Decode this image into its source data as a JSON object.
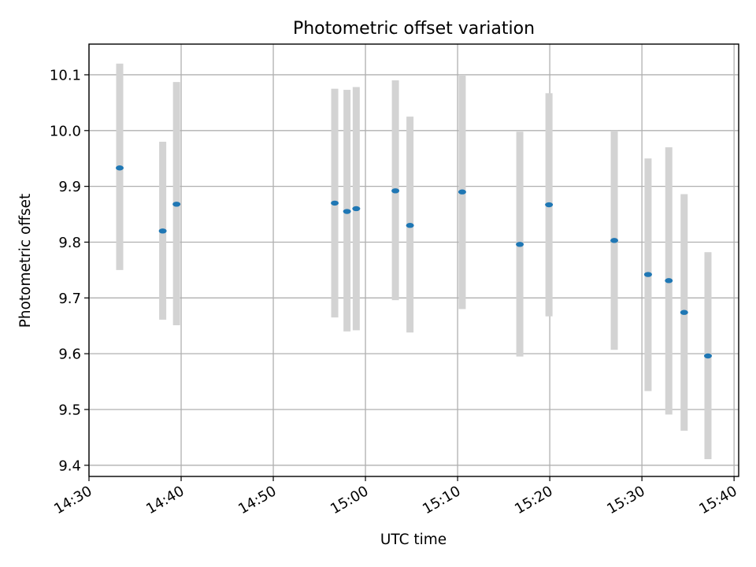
{
  "chart_data": {
    "type": "scatter",
    "title": "Photometric offset variation",
    "xlabel": "UTC time",
    "ylabel": "Photometric offset",
    "x_axis_type": "time",
    "xlim": [
      "14:30",
      "15:40:30"
    ],
    "ylim": [
      9.38,
      10.155
    ],
    "grid": true,
    "x_ticks": [
      "14:30",
      "14:40",
      "14:50",
      "15:00",
      "15:10",
      "15:20",
      "15:30",
      "15:40"
    ],
    "y_ticks": [
      9.4,
      9.5,
      9.6,
      9.7,
      9.8,
      9.9,
      10.0,
      10.1
    ],
    "y_tick_labels": [
      "9.4",
      "9.5",
      "9.6",
      "9.7",
      "9.8",
      "9.9",
      "10.0",
      "10.1"
    ],
    "colors": {
      "marker": "#1f77b4",
      "error_bar": "#d3d3d3",
      "grid": "#b0b0b0",
      "axes": "#000000"
    },
    "series": [
      {
        "error_bars": "y",
        "points": [
          {
            "x": "14:33:20",
            "y": 9.933,
            "ylow": 9.75,
            "yhigh": 10.12
          },
          {
            "x": "14:38:00",
            "y": 9.82,
            "ylow": 9.661,
            "yhigh": 9.98
          },
          {
            "x": "14:39:30",
            "y": 9.868,
            "ylow": 9.651,
            "yhigh": 10.087
          },
          {
            "x": "14:56:40",
            "y": 9.87,
            "ylow": 9.665,
            "yhigh": 10.075
          },
          {
            "x": "14:58:00",
            "y": 9.855,
            "ylow": 9.64,
            "yhigh": 10.073
          },
          {
            "x": "14:59:00",
            "y": 9.86,
            "ylow": 9.642,
            "yhigh": 10.078
          },
          {
            "x": "15:03:15",
            "y": 9.892,
            "ylow": 9.696,
            "yhigh": 10.09
          },
          {
            "x": "15:04:50",
            "y": 9.83,
            "ylow": 9.638,
            "yhigh": 10.025
          },
          {
            "x": "15:10:30",
            "y": 9.89,
            "ylow": 9.68,
            "yhigh": 10.1
          },
          {
            "x": "15:16:45",
            "y": 9.796,
            "ylow": 9.595,
            "yhigh": 9.998
          },
          {
            "x": "15:19:55",
            "y": 9.867,
            "ylow": 9.667,
            "yhigh": 10.067
          },
          {
            "x": "15:27:00",
            "y": 9.803,
            "ylow": 9.607,
            "yhigh": 10.0
          },
          {
            "x": "15:30:40",
            "y": 9.742,
            "ylow": 9.533,
            "yhigh": 9.95
          },
          {
            "x": "15:32:55",
            "y": 9.731,
            "ylow": 9.491,
            "yhigh": 9.97
          },
          {
            "x": "15:34:35",
            "y": 9.674,
            "ylow": 9.462,
            "yhigh": 9.886
          },
          {
            "x": "15:37:10",
            "y": 9.596,
            "ylow": 9.411,
            "yhigh": 9.782
          }
        ]
      }
    ]
  }
}
